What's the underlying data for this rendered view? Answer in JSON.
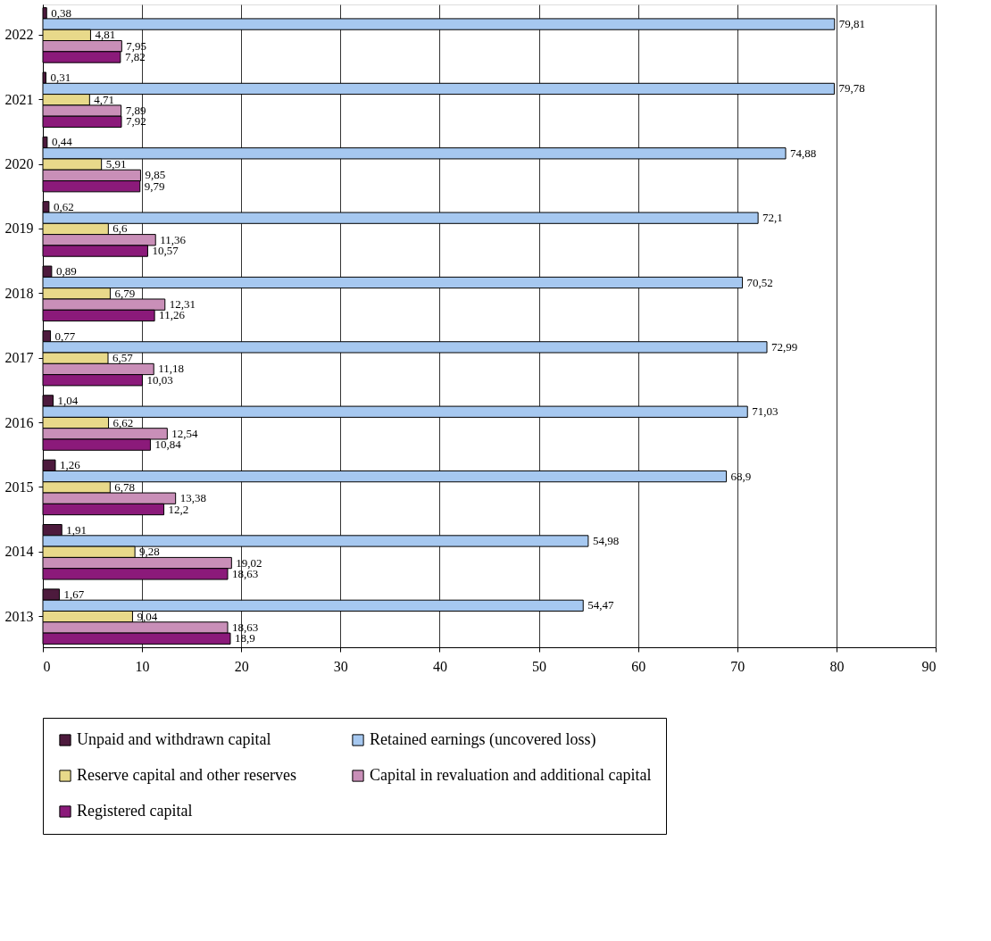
{
  "chart_data": {
    "type": "bar",
    "orientation": "horizontal",
    "categories": [
      "2022",
      "2021",
      "2020",
      "2019",
      "2018",
      "2017",
      "2016",
      "2015",
      "2014",
      "2013"
    ],
    "series": [
      {
        "name": "Unpaid and withdrawn capital",
        "color": "#4d1a3d",
        "values": [
          0.38,
          0.31,
          0.44,
          0.62,
          0.89,
          0.77,
          1.04,
          1.26,
          1.91,
          1.67
        ],
        "value_labels": [
          "0,38",
          "0,31",
          "0,44",
          "0,62",
          "0,89",
          "0,77",
          "1,04",
          "1,26",
          "1,91",
          "1,67"
        ]
      },
      {
        "name": "Retained earnings (uncovered loss)",
        "color": "#a6c8f0",
        "values": [
          79.81,
          79.78,
          74.88,
          72.1,
          70.52,
          72.99,
          71.03,
          68.9,
          54.98,
          54.47
        ],
        "value_labels": [
          "79,81",
          "79,78",
          "74,88",
          "72,1",
          "70,52",
          "72,99",
          "71,03",
          "68,9",
          "54,98",
          "54,47"
        ]
      },
      {
        "name": "Reserve capital and other reserves",
        "color": "#e8d98a",
        "values": [
          4.81,
          4.71,
          5.91,
          6.6,
          6.79,
          6.57,
          6.62,
          6.78,
          9.28,
          9.04
        ],
        "value_labels": [
          "4,81",
          "4,71",
          "5,91",
          "6,6",
          "6,79",
          "6,57",
          "6,62",
          "6,78",
          "9,28",
          "9,04"
        ]
      },
      {
        "name": "Capital in revaluation and additional capital",
        "color": "#c98fb8",
        "values": [
          7.95,
          7.89,
          9.85,
          11.36,
          12.31,
          11.18,
          12.54,
          13.38,
          19.02,
          18.63
        ],
        "value_labels": [
          "7,95",
          "7,89",
          "9,85",
          "11,36",
          "12,31",
          "11,18",
          "12,54",
          "13,38",
          "19,02",
          "18,63"
        ]
      },
      {
        "name": "Registered capital",
        "color": "#8b1a7a",
        "values": [
          7.82,
          7.92,
          9.79,
          10.57,
          11.26,
          10.03,
          10.84,
          12.2,
          18.63,
          18.9
        ],
        "value_labels": [
          "7,82",
          "7,92",
          "9,79",
          "10,57",
          "11,26",
          "10,03",
          "10,84",
          "12,2",
          "18,63",
          "18,9"
        ]
      }
    ],
    "xlim": [
      0,
      90
    ],
    "xticks": [
      0,
      10,
      20,
      30,
      40,
      50,
      60,
      70,
      80,
      90
    ],
    "grid": "x",
    "legend": "bottom"
  }
}
